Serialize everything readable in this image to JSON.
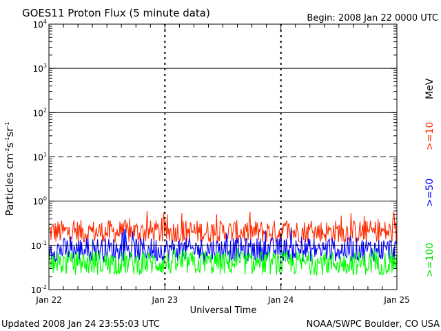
{
  "header": {
    "title": "GOES11 Proton Flux (5 minute data)",
    "begin": "Begin: 2008 Jan 22 0000 UTC"
  },
  "footer": {
    "updated": "Updated 2008 Jan 24 23:55:03 UTC",
    "source": "NOAA/SWPC Boulder, CO USA"
  },
  "chart_data": {
    "type": "line",
    "xlabel": "Universal Time",
    "ylabel": "Particles cm⁻²s⁻¹sr⁻¹",
    "ylabel_parts": {
      "base": "Particles cm",
      "e1": "-2",
      "s1": "s",
      "e2": "-1",
      "s2": "sr",
      "e3": "-1"
    },
    "y_scale": "log",
    "ylim": [
      0.01,
      10000
    ],
    "y_ticks": [
      {
        "base": "10",
        "exp": "-2"
      },
      {
        "base": "10",
        "exp": "-1"
      },
      {
        "base": "10",
        "exp": "0"
      },
      {
        "base": "10",
        "exp": "1"
      },
      {
        "base": "10",
        "exp": "2"
      },
      {
        "base": "10",
        "exp": "3"
      },
      {
        "base": "10",
        "exp": "4"
      }
    ],
    "x_ticks": [
      "Jan 22",
      "Jan 23",
      "Jan 24",
      "Jan 25"
    ],
    "xlim_days": [
      0,
      3
    ],
    "unit_label": "MeV",
    "threshold_lines": [
      {
        "value": 1000,
        "style": "solid"
      },
      {
        "value": 100,
        "style": "solid"
      },
      {
        "value": 10,
        "style": "dashed"
      },
      {
        "value": 1,
        "style": "solid"
      },
      {
        "value": 0.1,
        "style": "solid"
      }
    ],
    "series": [
      {
        "name": ">=10",
        "color": "#ff2a00",
        "typical": 0.2,
        "min": 0.12,
        "max": 0.6
      },
      {
        "name": ">=50",
        "color": "#0000ff",
        "typical": 0.08,
        "min": 0.04,
        "max": 0.25
      },
      {
        "name": ">=100",
        "color": "#00ff00",
        "typical": 0.04,
        "min": 0.02,
        "max": 0.09
      }
    ],
    "grid": false,
    "legend_position": "right"
  }
}
